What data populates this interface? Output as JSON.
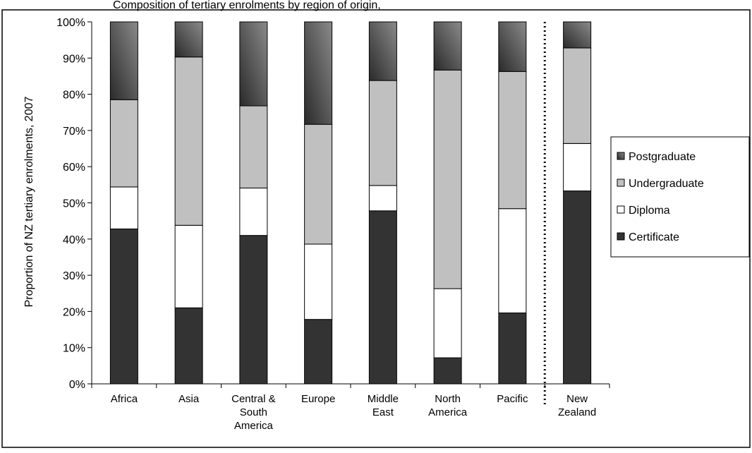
{
  "chart_data": {
    "type": "bar",
    "stacked": true,
    "title": "Composition of tertiary enrolments by region of origin,",
    "ylabel": "Proportion of NZ tertiary enrolments, 2007",
    "xlabel": "",
    "ylim": [
      0,
      100
    ],
    "yticks": [
      "0%",
      "10%",
      "20%",
      "30%",
      "40%",
      "50%",
      "60%",
      "70%",
      "80%",
      "90%",
      "100%"
    ],
    "categories": [
      [
        "Africa"
      ],
      [
        "Asia"
      ],
      [
        "Central &",
        "South",
        "America"
      ],
      [
        "Europe"
      ],
      [
        "Middle",
        "East"
      ],
      [
        "North",
        "America"
      ],
      [
        "Pacific"
      ],
      [
        "New",
        "Zealand"
      ]
    ],
    "series": [
      {
        "name": "Certificate",
        "values": [
          42.8,
          21.0,
          41.0,
          17.8,
          47.8,
          7.2,
          19.6,
          53.3
        ]
      },
      {
        "name": "Diploma",
        "values": [
          11.6,
          22.8,
          13.1,
          20.8,
          7.0,
          19.1,
          28.8,
          13.1
        ]
      },
      {
        "name": "Undergraduate",
        "values": [
          24.1,
          46.5,
          22.7,
          33.1,
          29.0,
          60.4,
          37.9,
          26.4
        ]
      },
      {
        "name": "Postgraduate",
        "values": [
          21.5,
          9.7,
          23.2,
          28.3,
          16.2,
          13.3,
          13.7,
          7.2
        ]
      }
    ],
    "legend_order": [
      "Postgraduate",
      "Undergraduate",
      "Diploma",
      "Certificate"
    ],
    "legend_position": "right",
    "separator_before_category": 7,
    "grid": false,
    "colors": {
      "Certificate": "#333333",
      "Diploma": "#ffffff",
      "Undergraduate": "#c0c0c0",
      "Postgraduate_light": "#8a8a8a",
      "Postgraduate_dark": "#2a2a2a"
    }
  }
}
